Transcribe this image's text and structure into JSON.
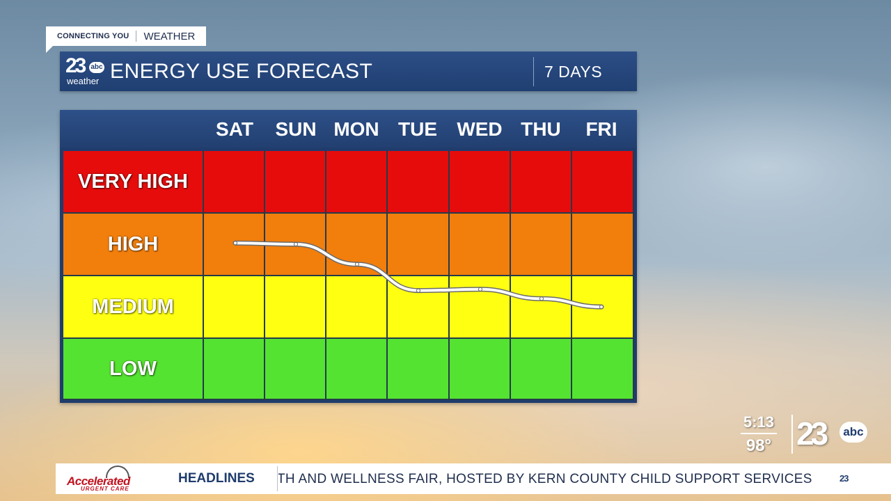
{
  "tag": {
    "left": "CONNECTING YOU",
    "right": "WEATHER"
  },
  "station_logo": {
    "number": "23",
    "network": "abc",
    "sub": "weather"
  },
  "header": {
    "title": "ENERGY USE FORECAST",
    "range": "7 DAYS"
  },
  "days": [
    "SAT",
    "SUN",
    "MON",
    "TUE",
    "WED",
    "THU",
    "FRI"
  ],
  "levels": [
    {
      "label": "VERY HIGH",
      "color": "#e60c0c"
    },
    {
      "label": "HIGH",
      "color": "#f27e0c"
    },
    {
      "label": "MEDIUM",
      "color": "#ffff12"
    },
    {
      "label": "LOW",
      "color": "#55e331"
    }
  ],
  "forecast_level_index": {
    "note_scale": "0 = LOW, 3 = VERY HIGH",
    "SAT": 2.02,
    "SUN": 2.0,
    "MON": 1.68,
    "TUE": 1.26,
    "WED": 1.28,
    "THU": 1.13,
    "FRI": 1.0
  },
  "clock": {
    "time": "5:13",
    "temp": "98°"
  },
  "bug_logo": {
    "number": "23",
    "network": "abc"
  },
  "ticker": {
    "sponsor": "Accelerated",
    "sponsor_sub": "URGENT CARE",
    "label": "HEADLINES",
    "text": "TH AND WELLNESS FAIR, HOSTED BY KERN COUNTY CHILD SUPPORT SERVICES",
    "end_logo": "23"
  },
  "colors": {
    "panel_blue": "#203f72",
    "trend_line": "#ffffff"
  }
}
